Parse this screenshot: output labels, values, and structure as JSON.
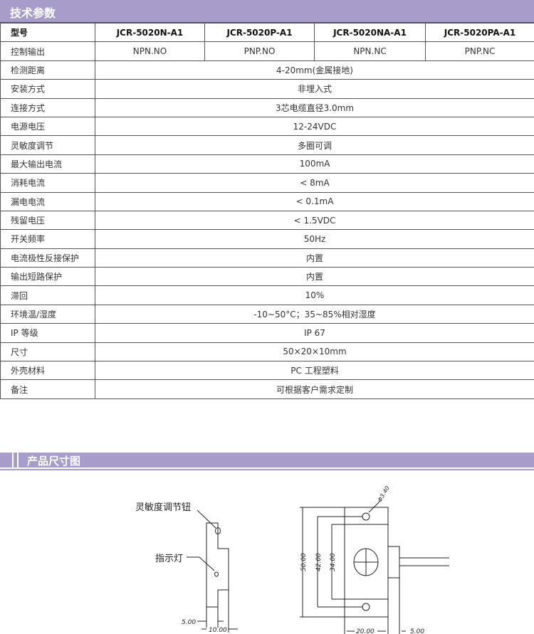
{
  "section_specs": {
    "title": "技术参数"
  },
  "table": {
    "header": [
      "型号",
      "JCR-5020N-A1",
      "JCR-5020P-A1",
      "JCR-5020NA-A1",
      "JCR-5020PA-A1"
    ],
    "control_output": {
      "label": "控制输出",
      "values": [
        "NPN.NO",
        "PNP.NO",
        "NPN.NC",
        "PNP.NC"
      ]
    },
    "rows": [
      {
        "label": "检测距离",
        "value": "4-20mm(金属接地)"
      },
      {
        "label": "安装方式",
        "value": "非埋入式"
      },
      {
        "label": "连接方式",
        "value": "3芯电缆直径3.0mm"
      },
      {
        "label": "电源电压",
        "value": "12-24VDC"
      },
      {
        "label": "灵敏度调节",
        "value": "多圈可调"
      },
      {
        "label": "最大输出电流",
        "value": "100mA"
      },
      {
        "label": "消耗电流",
        "value": "< 8mA"
      },
      {
        "label": "漏电电流",
        "value": "< 0.1mA"
      },
      {
        "label": "残留电压",
        "value": "< 1.5VDC"
      },
      {
        "label": "开关频率",
        "value": "50Hz"
      },
      {
        "label": "电流极性反接保护",
        "value": "内置"
      },
      {
        "label": "输出短路保护",
        "value": "内置"
      },
      {
        "label": "滞回",
        "value": "10%"
      },
      {
        "label": "环境温/湿度",
        "value": "-10~50°C；35~85%相对湿度"
      },
      {
        "label": "IP 等级",
        "value": "IP 67"
      },
      {
        "label": "尺寸",
        "value": "50×20×10mm"
      },
      {
        "label": "外壳材料",
        "value": "PC 工程塑料"
      },
      {
        "label": "备注",
        "value": "可根据客户需求定制"
      }
    ]
  },
  "section_dims": {
    "title": "产品尺寸图"
  },
  "drawing": {
    "label_knob": "灵敏度调节钮",
    "label_led": "指示灯",
    "dim_5a": "5.00",
    "dim_10": "10.00",
    "dim_50": "50.00",
    "dim_42": "42.00",
    "dim_34": "34.00",
    "dim_20": "20.00",
    "dim_5b": "5.00",
    "dim_hole": "Φ3.40"
  }
}
